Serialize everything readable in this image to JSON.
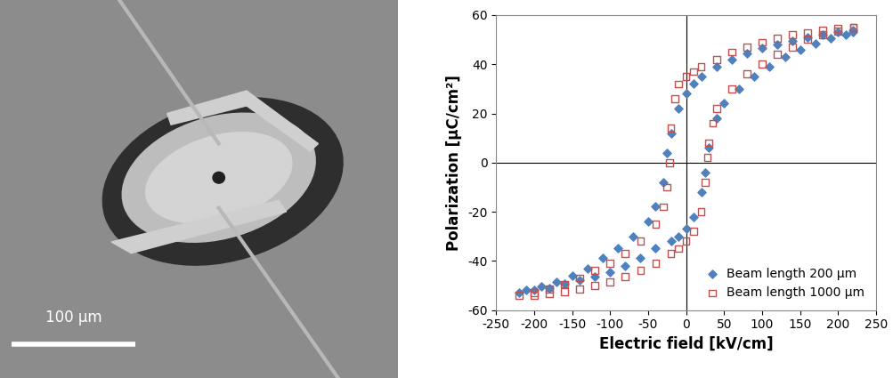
{
  "image": {
    "scale_bar": "100 μm"
  },
  "chart_data": {
    "type": "scatter",
    "x_label": "Electric field [kV/cm]",
    "y_label": "Polarization [μC/cm²]",
    "xlim": [
      -250,
      250
    ],
    "xticks": [
      -250,
      -200,
      -150,
      -100,
      -50,
      0,
      50,
      100,
      150,
      200,
      250
    ],
    "ylim": [
      -60,
      60
    ],
    "yticks": [
      -60,
      -40,
      -20,
      0,
      20,
      40,
      60
    ],
    "legend": "lower right",
    "series": [
      {
        "name": "Beam length 200 μm",
        "color": "#4f81bd",
        "marker": "diamond",
        "x": [
          220,
          200,
          180,
          160,
          140,
          120,
          100,
          80,
          60,
          40,
          20,
          10,
          0,
          -10,
          -20,
          -25,
          -30,
          -40,
          -50,
          -70,
          -90,
          -110,
          -130,
          -150,
          -170,
          -190,
          -210,
          -220,
          -200,
          -180,
          -160,
          -140,
          -120,
          -100,
          -80,
          -60,
          -40,
          -20,
          -10,
          0,
          10,
          20,
          25,
          30,
          40,
          50,
          70,
          90,
          110,
          130,
          150,
          170,
          190,
          210,
          220
        ],
        "values": [
          54,
          53,
          52,
          51,
          49.5,
          48,
          46.5,
          44.5,
          42,
          39,
          35,
          32,
          28,
          22,
          12,
          4,
          -8,
          -18,
          -24,
          -30,
          -35,
          -39,
          -43,
          -46,
          -48.5,
          -50.5,
          -52,
          -53,
          -52,
          -51,
          -49.5,
          -48,
          -46.5,
          -44.5,
          -42,
          -39,
          -35,
          -32,
          -30,
          -27,
          -22,
          -12,
          -4,
          6,
          18,
          24,
          30,
          35,
          39,
          43,
          46,
          48.5,
          50.5,
          52,
          53
        ]
      },
      {
        "name": "Beam length 1000 μm",
        "color": "#c0504d",
        "marker": "square",
        "x": [
          220,
          200,
          180,
          160,
          140,
          120,
          100,
          80,
          60,
          40,
          20,
          10,
          0,
          -10,
          -15,
          -20,
          -22,
          -25,
          -30,
          -40,
          -60,
          -80,
          -100,
          -120,
          -140,
          -160,
          -180,
          -200,
          -220,
          -200,
          -180,
          -160,
          -140,
          -120,
          -100,
          -80,
          -60,
          -40,
          -20,
          -10,
          0,
          10,
          20,
          25,
          28,
          30,
          35,
          40,
          60,
          80,
          100,
          120,
          140,
          160,
          180,
          200,
          220
        ],
        "values": [
          55,
          54.5,
          54,
          53,
          52,
          50.5,
          49,
          47,
          45,
          42,
          39,
          37,
          35,
          32,
          26,
          14,
          0,
          -10,
          -18,
          -25,
          -32,
          -37,
          -41,
          -44,
          -47,
          -49.5,
          -51.5,
          -53,
          -54,
          -54,
          -53.5,
          -52.5,
          -51.5,
          -50,
          -48.5,
          -46.5,
          -44,
          -41,
          -37,
          -35,
          -32,
          -28,
          -20,
          -8,
          2,
          8,
          16,
          22,
          30,
          36,
          40,
          44,
          47,
          50,
          52,
          53.5,
          55
        ]
      }
    ]
  }
}
